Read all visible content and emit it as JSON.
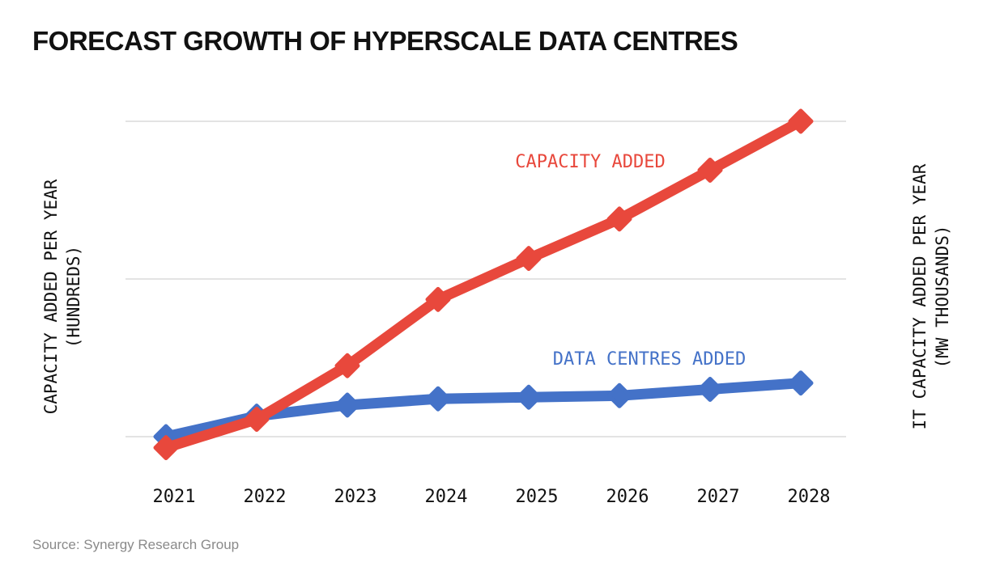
{
  "title": "FORECAST GROWTH OF HYPERSCALE DATA CENTRES",
  "source": "Source: Synergy Research Group",
  "chart_data": {
    "type": "line",
    "title": "FORECAST GROWTH OF HYPERSCALE DATA CENTRES",
    "x": [
      "2021",
      "2022",
      "2023",
      "2024",
      "2025",
      "2026",
      "2027",
      "2028"
    ],
    "ylabel_left": [
      "CAPACITY ADDED PER YEAR",
      "(HUNDREDS)"
    ],
    "ylabel_right": [
      "IT CAPACITY ADDED PER YEAR",
      "(MW THOUSANDS)"
    ],
    "y_tick_labels": "none",
    "grid": "horizontal",
    "gridlines": 3,
    "series": [
      {
        "name": "CAPACITY ADDED",
        "color": "#e8483c",
        "values": [
          -0.07,
          0.11,
          0.45,
          0.87,
          1.13,
          1.38,
          1.69,
          2.0
        ]
      },
      {
        "name": "DATA CENTRES ADDED",
        "color": "#4472c8",
        "values": [
          0.0,
          0.13,
          0.2,
          0.24,
          0.25,
          0.26,
          0.3,
          0.34
        ]
      }
    ],
    "ylim": [
      -0.2,
      2.1
    ]
  }
}
